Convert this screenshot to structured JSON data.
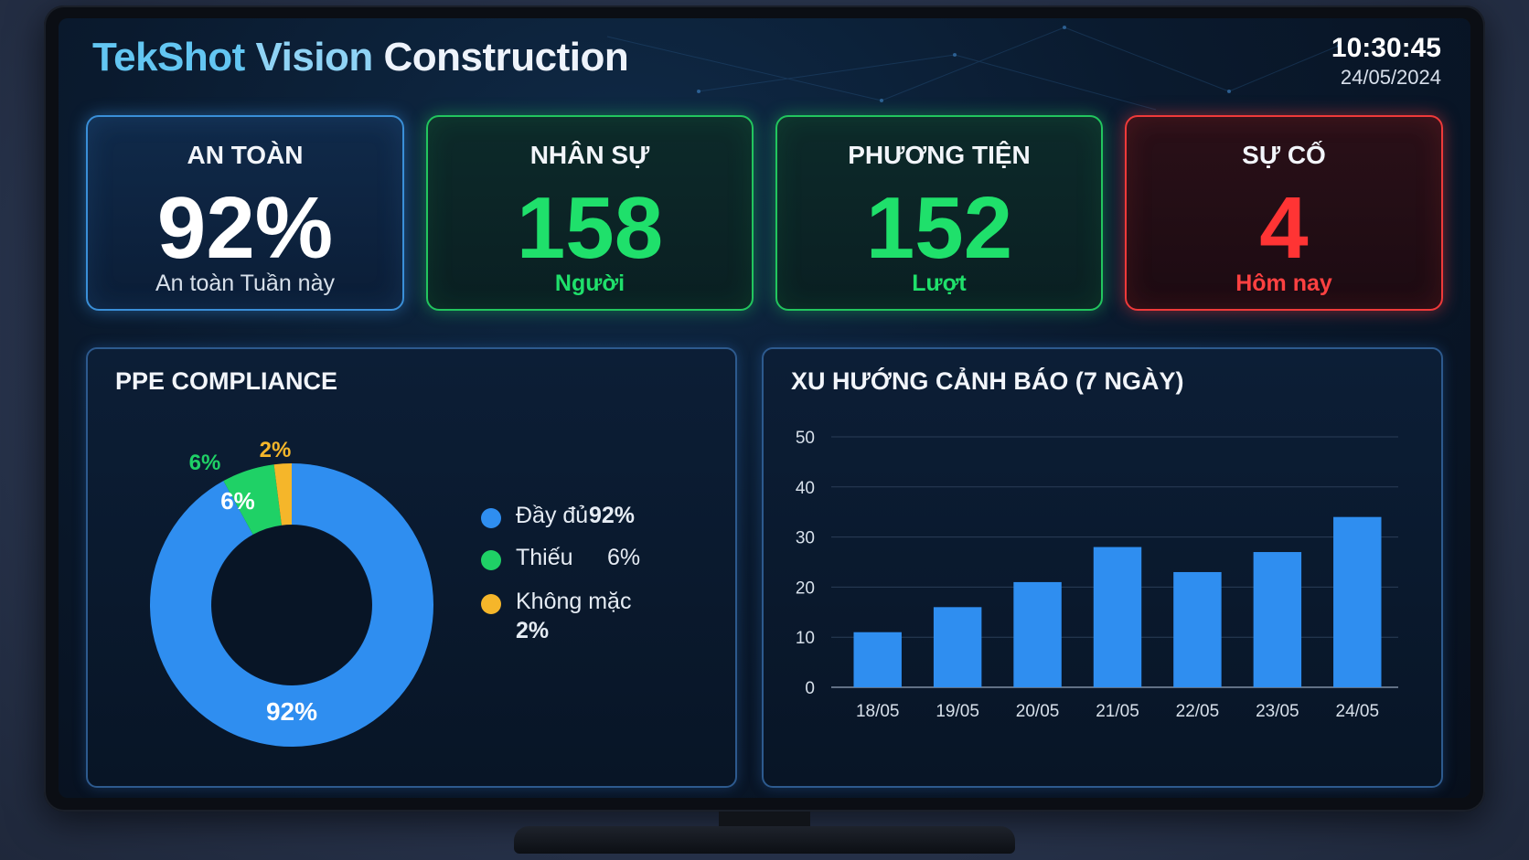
{
  "header": {
    "title_part1": "TekShot",
    "title_part2": "Vision",
    "title_part3": "Construction",
    "time": "10:30:45",
    "date": "24/05/2024"
  },
  "cards": [
    {
      "label": "AN TOÀN",
      "value": "92%",
      "sub": "An toàn Tuần này"
    },
    {
      "label": "NHÂN SỰ",
      "value": "158",
      "sub": "Người"
    },
    {
      "label": "PHƯƠNG TIỆN",
      "value": "152",
      "sub": "Lượt"
    },
    {
      "label": "SỰ CỐ",
      "value": "4",
      "sub": "Hôm nay"
    }
  ],
  "ppe": {
    "title": "PPE COMPLIANCE",
    "legend": [
      {
        "label": "Đầy đủ",
        "pct": "92%",
        "color": "#2f8ef0"
      },
      {
        "label": "Thiếu",
        "pct": "6%",
        "color": "#1fd166"
      },
      {
        "label": "Không mặc",
        "pct": "2%",
        "color": "#f5b62a"
      }
    ],
    "slice_labels": {
      "full": "92%",
      "missing_inner": "6%",
      "missing_outer": "6%",
      "none_outer": "2%"
    }
  },
  "trend": {
    "title": "XU HƯỚNG CẢNH BÁO (7 NGÀY)"
  },
  "chart_data": [
    {
      "type": "pie",
      "title": "PPE COMPLIANCE",
      "categories": [
        "Đầy đủ",
        "Thiếu",
        "Không mặc"
      ],
      "values": [
        92,
        6,
        2
      ],
      "colors": [
        "#2f8ef0",
        "#1fd166",
        "#f5b62a"
      ],
      "donut": true
    },
    {
      "type": "bar",
      "title": "XU HƯỚNG CẢNH BÁO (7 NGÀY)",
      "categories": [
        "18/05",
        "19/05",
        "20/05",
        "21/05",
        "22/05",
        "23/05",
        "24/05"
      ],
      "values": [
        11,
        16,
        21,
        28,
        23,
        27,
        34
      ],
      "ylim": [
        0,
        50
      ],
      "yticks": [
        "0",
        "10",
        "20",
        "30",
        "40",
        "50"
      ],
      "grid": true,
      "color": "#2f8ef0"
    }
  ]
}
